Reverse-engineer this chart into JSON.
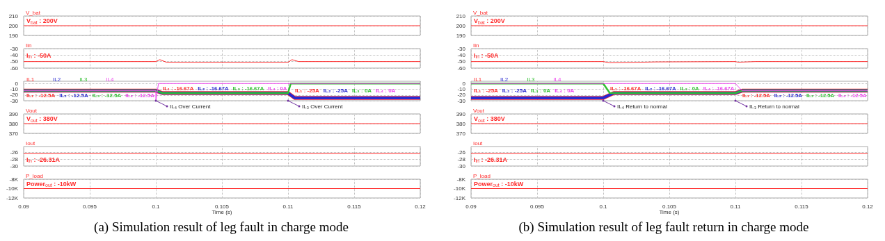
{
  "chart_data": [
    {
      "type": "line",
      "title": "V_bat",
      "xlim": [
        0.09,
        0.12
      ],
      "xticks": [
        0.09,
        0.095,
        0.1,
        0.105,
        0.11,
        0.115,
        0.12
      ],
      "ylim": [
        190,
        210
      ],
      "yticks": [
        190,
        200,
        210
      ],
      "grid": true,
      "tick_labels": "y",
      "series": [
        {
          "color": "#ff2a2a",
          "x": [
            0.09,
            0.12
          ],
          "values": [
            200,
            200
          ]
        }
      ],
      "annotations": [
        "V$_{bat}$ : 200V"
      ]
    },
    {
      "type": "line",
      "title": "Iin",
      "xlim": [
        0.09,
        0.12
      ],
      "xticks": [
        0.09,
        0.095,
        0.1,
        0.105,
        0.11,
        0.115,
        0.12
      ],
      "ylim": [
        -60,
        -30
      ],
      "yticks": [
        -60,
        -50,
        -40,
        -30
      ],
      "grid": true,
      "tick_labels": "y",
      "series": [
        {
          "color": "#ff2a2a",
          "x": [
            0.09,
            0.1,
            0.1003,
            0.1008,
            0.11,
            0.1103,
            0.1108,
            0.12
          ],
          "values": [
            -50,
            -50,
            -47,
            -51,
            -51,
            -47,
            -50,
            -50
          ]
        }
      ],
      "annotations": [
        "I$_{in}$ : -50A"
      ]
    },
    {
      "type": "line",
      "legend": "top left",
      "xlim": [
        0.09,
        0.12
      ],
      "xticks": [
        0.09,
        0.095,
        0.1,
        0.105,
        0.11,
        0.115,
        0.12
      ],
      "ylim": [
        -30,
        4
      ],
      "yticks": [
        -30,
        -20,
        -10,
        0
      ],
      "grid": true,
      "tick_labels": "y",
      "series": [
        {
          "name": "IL1",
          "color": "#ff2a2a",
          "x": [
            0.09,
            0.1,
            0.1005,
            0.11,
            0.1105,
            0.12
          ],
          "values": [
            -12.5,
            -12.5,
            -16.67,
            -16.67,
            -25,
            -25
          ]
        },
        {
          "name": "IL2",
          "color": "#2a2ad0",
          "x": [
            0.09,
            0.1,
            0.1005,
            0.11,
            0.1105,
            0.12
          ],
          "values": [
            -12.5,
            -12.5,
            -16.67,
            -16.67,
            -25,
            -25
          ]
        },
        {
          "name": "IL3",
          "color": "#30c030",
          "x": [
            0.09,
            0.1,
            0.1005,
            0.11,
            0.1102,
            0.12
          ],
          "values": [
            -12.5,
            -12.5,
            -16.67,
            -16.67,
            0,
            0
          ]
        },
        {
          "name": "IL4",
          "color": "#ee44ee",
          "x": [
            0.09,
            0.1,
            0.1,
            0.1002,
            0.12
          ],
          "values": [
            -12.5,
            -12.5,
            -30,
            0,
            0
          ]
        }
      ],
      "annotations": [
        "IL₁ : -12.5A",
        "IL₂ : -12.5A",
        "IL₃ : -12.5A",
        "IL₄ : -12.5A",
        "IL₁ : -16.67A",
        "IL₂ : -16.67A",
        "IL₃ : -16.67A",
        "IL₄ : 0A",
        "IL₁ : -25A",
        "IL₂ : -25A",
        "IL₃ : 0A",
        "IL₄ : 0A",
        "IL₄ Over Current",
        "IL₃ Over Current"
      ]
    },
    {
      "type": "line",
      "title": "Vout",
      "xlim": [
        0.09,
        0.12
      ],
      "xticks": [
        0.09,
        0.095,
        0.1,
        0.105,
        0.11,
        0.115,
        0.12
      ],
      "ylim": [
        370,
        390
      ],
      "yticks": [
        370,
        380,
        390
      ],
      "grid": true,
      "tick_labels": "y",
      "series": [
        {
          "color": "#ff2a2a",
          "x": [
            0.09,
            0.12
          ],
          "values": [
            380,
            380
          ]
        }
      ],
      "annotations": [
        "V$_{out}$ : 380V"
      ]
    },
    {
      "type": "line",
      "title": "Iout",
      "xlim": [
        0.09,
        0.12
      ],
      "xticks": [
        0.09,
        0.095,
        0.1,
        0.105,
        0.11,
        0.115,
        0.12
      ],
      "ylim": [
        -30,
        -24.3
      ],
      "yticks": [
        -30,
        -28,
        -26
      ],
      "grid": true,
      "tick_labels": "y",
      "series": [
        {
          "color": "#ff2a2a",
          "x": [
            0.09,
            0.12
          ],
          "values": [
            -26.31,
            -26.31
          ]
        }
      ],
      "annotations": [
        "I$_{in}$ : -26.31A"
      ]
    },
    {
      "type": "line",
      "title": "P_load",
      "subtitle": "(a) Simulation result of leg fault in charge mode",
      "xlabel": "Time (s)",
      "xlim": [
        0.09,
        0.12
      ],
      "xticks": [
        0.09,
        0.095,
        0.1,
        0.105,
        0.11,
        0.115,
        0.12
      ],
      "ylim": [
        -12000,
        -8000
      ],
      "yticks": [
        {
          "value": -12000,
          "label": "-12K"
        },
        {
          "value": -10000,
          "label": "-10K"
        },
        {
          "value": -8000,
          "label": "-8K"
        }
      ],
      "grid": true,
      "series": [
        {
          "color": "#ff2a2a",
          "x": [
            0.09,
            0.12
          ],
          "values": [
            -10000,
            -10000
          ]
        }
      ],
      "annotations": [
        "Power$_{out}$ : -10kW"
      ]
    },
    {
      "type": "line",
      "title": "V_bat",
      "xlim": [
        0.09,
        0.12
      ],
      "xticks": [
        0.09,
        0.095,
        0.1,
        0.105,
        0.11,
        0.115,
        0.12
      ],
      "ylim": [
        190,
        210
      ],
      "yticks": [
        190,
        200,
        210
      ],
      "grid": true,
      "tick_labels": "y",
      "series": [
        {
          "color": "#ff2a2a",
          "x": [
            0.09,
            0.12
          ],
          "values": [
            200,
            200
          ]
        }
      ],
      "annotations": [
        "V$_{bat}$ : 200V"
      ]
    },
    {
      "type": "line",
      "title": "Iin",
      "xlim": [
        0.09,
        0.12
      ],
      "xticks": [
        0.09,
        0.095,
        0.1,
        0.105,
        0.11,
        0.115,
        0.12
      ],
      "ylim": [
        -60,
        -30
      ],
      "yticks": [
        -60,
        -50,
        -40,
        -30
      ],
      "grid": true,
      "tick_labels": "y",
      "series": [
        {
          "color": "#ff2a2a",
          "x": [
            0.09,
            0.1,
            0.1005,
            0.104,
            0.11,
            0.1102,
            0.1115,
            0.12
          ],
          "values": [
            -50,
            -50,
            -52,
            -50.5,
            -50,
            -51,
            -50,
            -50
          ]
        }
      ],
      "annotations": [
        "I$_{in}$ : -50A"
      ]
    },
    {
      "type": "line",
      "legend": "top left",
      "xlim": [
        0.09,
        0.12
      ],
      "xticks": [
        0.09,
        0.095,
        0.1,
        0.105,
        0.11,
        0.115,
        0.12
      ],
      "ylim": [
        -30,
        4
      ],
      "yticks": [
        -30,
        -20,
        -10,
        0
      ],
      "grid": true,
      "tick_labels": "y",
      "series": [
        {
          "name": "IL1",
          "color": "#ff2a2a",
          "x": [
            0.09,
            0.1,
            0.1008,
            0.11,
            0.1105,
            0.12
          ],
          "values": [
            -25,
            -25,
            -16.67,
            -16.67,
            -12.5,
            -12.5
          ]
        },
        {
          "name": "IL2",
          "color": "#2a2ad0",
          "x": [
            0.09,
            0.1,
            0.1008,
            0.11,
            0.1105,
            0.12
          ],
          "values": [
            -25,
            -25,
            -16.67,
            -16.67,
            -12.5,
            -12.5
          ]
        },
        {
          "name": "IL3",
          "color": "#30c030",
          "x": [
            0.09,
            0.1,
            0.1005,
            0.11,
            0.1105,
            0.12
          ],
          "values": [
            0,
            0,
            -16.67,
            -16.67,
            -12.5,
            -12.5
          ]
        },
        {
          "name": "IL4",
          "color": "#ee44ee",
          "x": [
            0.09,
            0.11,
            0.1105,
            0.12
          ],
          "values": [
            0,
            0,
            -12.5,
            -12.5
          ]
        }
      ],
      "annotations": [
        "IL₁ : -25A",
        "IL₂ : -25A",
        "IL₃ : 0A",
        "IL₄ : 0A",
        "IL₁ : -16.67A",
        "IL₂ : -16.67A",
        "IL₃ : 0A",
        "IL₄ : -16.67A",
        "IL₁ : -12.5A",
        "IL₂ : -12.5A",
        "IL₃ : -12.5A",
        "IL₄ : -12.5A",
        "IL₄ Return to normal",
        "IL₃ Return to normal"
      ]
    },
    {
      "type": "line",
      "title": "Vout",
      "xlim": [
        0.09,
        0.12
      ],
      "xticks": [
        0.09,
        0.095,
        0.1,
        0.105,
        0.11,
        0.115,
        0.12
      ],
      "ylim": [
        370,
        390
      ],
      "yticks": [
        370,
        380,
        390
      ],
      "grid": true,
      "tick_labels": "y",
      "series": [
        {
          "color": "#ff2a2a",
          "x": [
            0.09,
            0.12
          ],
          "values": [
            380,
            380
          ]
        }
      ],
      "annotations": [
        "V$_{out}$ : 380V"
      ]
    },
    {
      "type": "line",
      "title": "Iout",
      "xlim": [
        0.09,
        0.12
      ],
      "xticks": [
        0.09,
        0.095,
        0.1,
        0.105,
        0.11,
        0.115,
        0.12
      ],
      "ylim": [
        -30,
        -24.3
      ],
      "yticks": [
        -30,
        -28,
        -26
      ],
      "grid": true,
      "tick_labels": "y",
      "series": [
        {
          "color": "#ff2a2a",
          "x": [
            0.09,
            0.12
          ],
          "values": [
            -26.31,
            -26.31
          ]
        }
      ],
      "annotations": [
        "I$_{in}$ : -26.31A"
      ]
    },
    {
      "type": "line",
      "title": "P_load",
      "subtitle": "(b) Simulation result of leg fault return in charge mode",
      "xlabel": "Time (s)",
      "xlim": [
        0.09,
        0.12
      ],
      "xticks": [
        0.09,
        0.095,
        0.1,
        0.105,
        0.11,
        0.115,
        0.12
      ],
      "ylim": [
        -12000,
        -8000
      ],
      "yticks": [
        {
          "value": -12000,
          "label": "-12K"
        },
        {
          "value": -10000,
          "label": "-10K"
        },
        {
          "value": -8000,
          "label": "-8K"
        }
      ],
      "grid": true,
      "series": [
        {
          "color": "#ff2a2a",
          "x": [
            0.09,
            0.12
          ],
          "values": [
            -10000,
            -10000
          ]
        }
      ],
      "annotations": [
        "Power$_{out}$ : -10kW"
      ]
    }
  ]
}
